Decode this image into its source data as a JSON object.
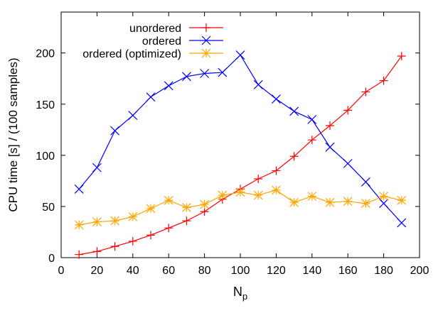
{
  "chart_data": {
    "type": "line",
    "title": "",
    "xlabel": "N",
    "xlabel_subscript": "p",
    "ylabel": "CPU time [s] / (100 samples)",
    "xlim": [
      0,
      200
    ],
    "ylim": [
      0,
      240
    ],
    "xticks": [
      0,
      20,
      40,
      60,
      80,
      100,
      120,
      140,
      160,
      180,
      200
    ],
    "yticks": [
      0,
      50,
      100,
      150,
      200
    ],
    "grid": false,
    "legend_position": "top-left",
    "x": [
      10,
      20,
      30,
      40,
      50,
      60,
      70,
      80,
      90,
      100,
      110,
      120,
      130,
      140,
      150,
      160,
      170,
      180,
      190
    ],
    "series": [
      {
        "name": "unordered",
        "color": "#ff0000",
        "marker": "plus",
        "values": [
          3,
          6,
          11,
          16,
          22,
          29,
          36,
          45,
          57,
          67,
          77,
          85,
          99,
          115,
          129,
          144,
          162,
          173,
          197
        ]
      },
      {
        "name": "ordered",
        "color": "#0000ff",
        "marker": "cross",
        "values": [
          67,
          88,
          124,
          139,
          157,
          168,
          177,
          180,
          181,
          198,
          169,
          155,
          143,
          135,
          108,
          92,
          74,
          53,
          34
        ]
      },
      {
        "name": "ordered (optimized)",
        "color": "#ffa500",
        "marker": "star",
        "values": [
          32,
          35,
          36,
          40,
          48,
          56,
          49,
          52,
          61,
          64,
          61,
          66,
          54,
          60,
          54,
          55,
          53,
          60,
          56
        ]
      }
    ]
  }
}
